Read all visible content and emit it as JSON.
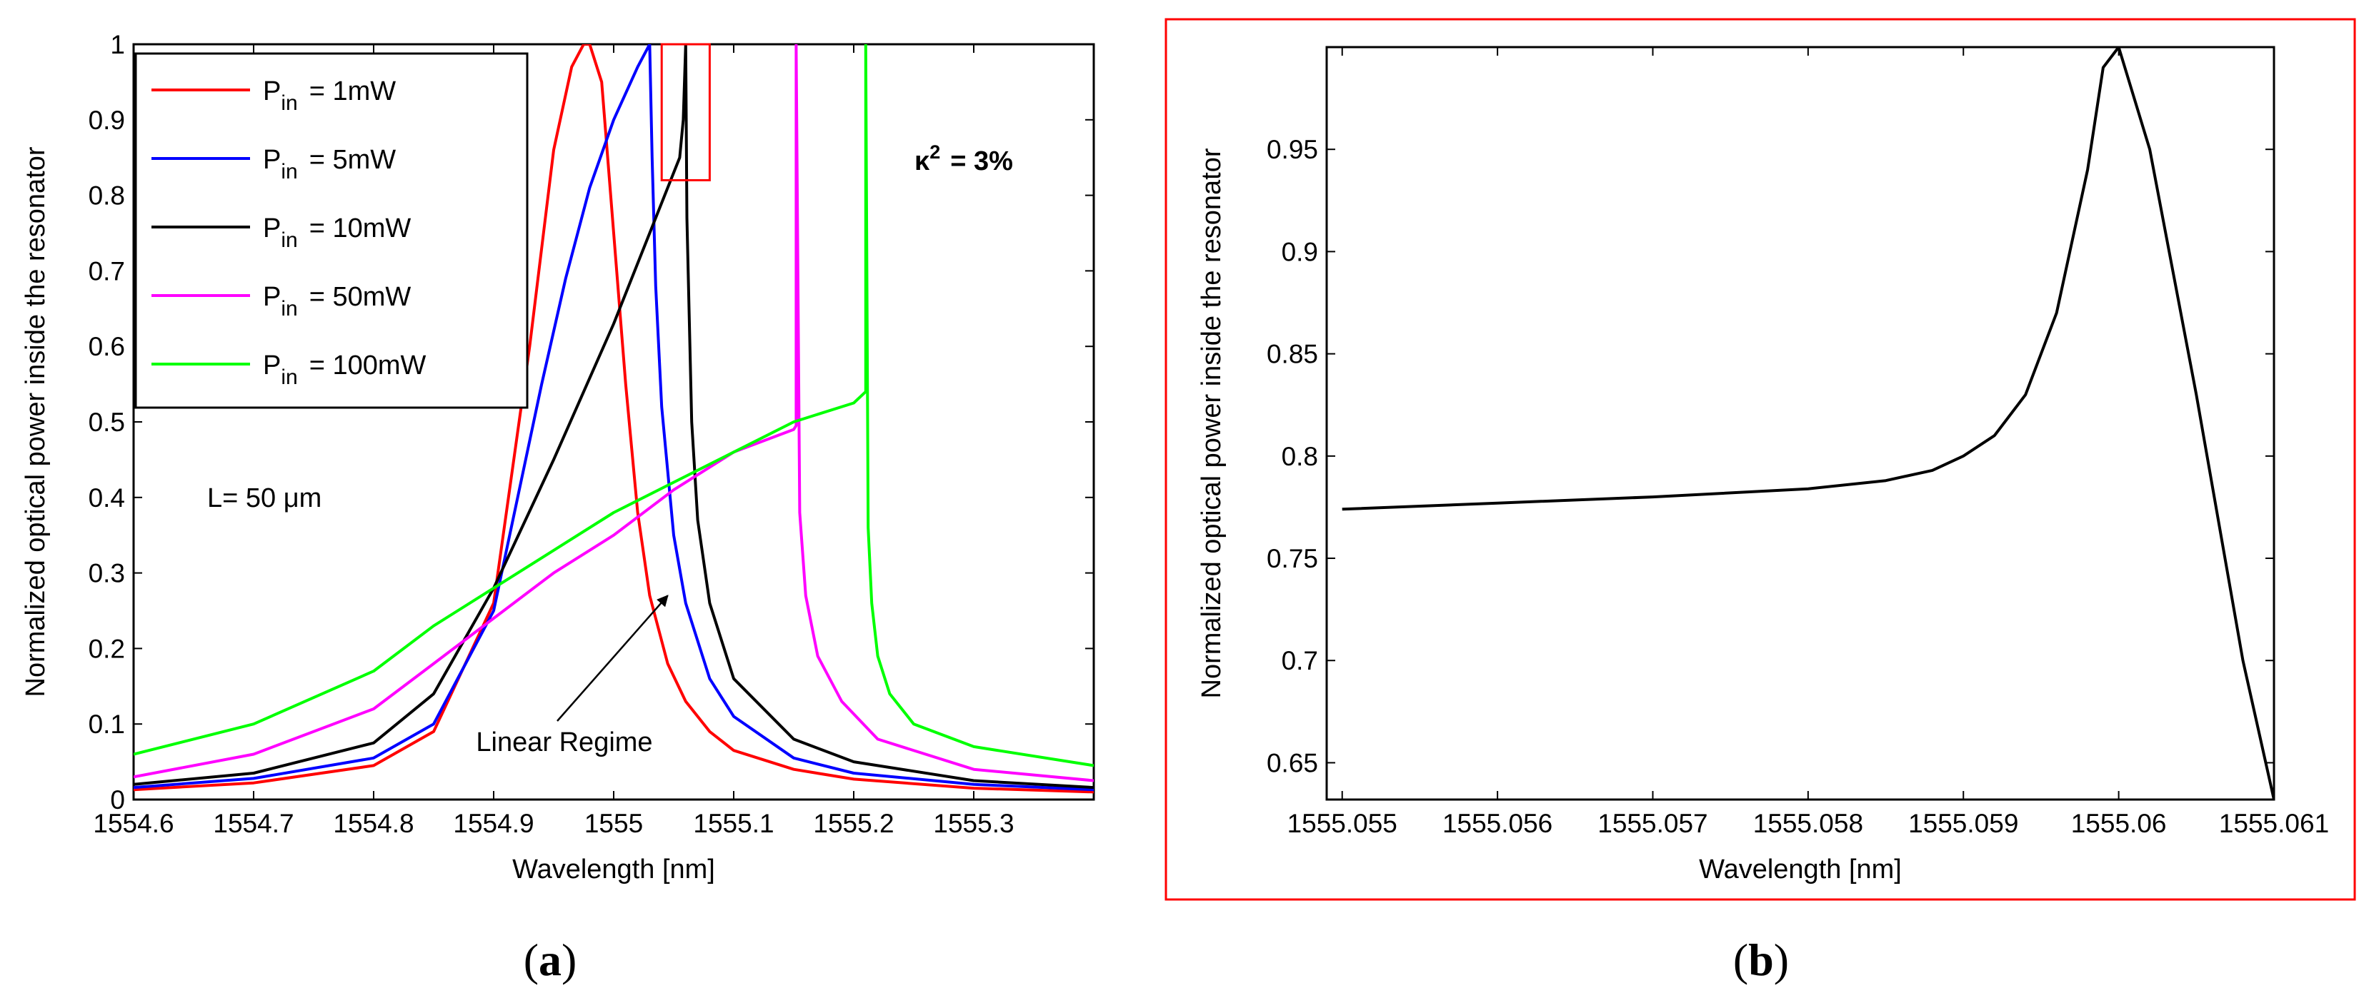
{
  "chart_data": [
    {
      "panel_label": "a",
      "type": "line",
      "xlabel": "Wavelength  [nm]",
      "ylabel": "Normalized optical power inside the resonator",
      "xlim": [
        1554.6,
        1555.4
      ],
      "ylim": [
        0,
        1
      ],
      "xticks": [
        1554.6,
        1554.7,
        1554.8,
        1554.9,
        1555.0,
        1555.1,
        1555.2,
        1555.3
      ],
      "xtick_labels": [
        "1554.6",
        "1554.7",
        "1554.8",
        "1554.9",
        "1555",
        "1555.1",
        "1555.2",
        "1555.3"
      ],
      "yticks": [
        0,
        0.1,
        0.2,
        0.3,
        0.4,
        0.5,
        0.6,
        0.7,
        0.8,
        0.9,
        1
      ],
      "ytick_labels": [
        "0",
        "0.1",
        "0.2",
        "0.3",
        "0.4",
        "0.5",
        "0.6",
        "0.7",
        "0.8",
        "0.9",
        "1"
      ],
      "legend_position": "top-left",
      "series": [
        {
          "name": "1mW",
          "color": "#ff0000",
          "x": [
            1554.6,
            1554.7,
            1554.8,
            1554.85,
            1554.9,
            1554.93,
            1554.95,
            1554.965,
            1554.975,
            1554.98,
            1554.99,
            1555.0,
            1555.01,
            1555.02,
            1555.03,
            1555.045,
            1555.06,
            1555.08,
            1555.1,
            1555.15,
            1555.2,
            1555.3,
            1555.4
          ],
          "y": [
            0.013,
            0.022,
            0.045,
            0.09,
            0.26,
            0.6,
            0.86,
            0.97,
            1.0,
            1.0,
            0.95,
            0.75,
            0.55,
            0.38,
            0.27,
            0.18,
            0.13,
            0.09,
            0.065,
            0.04,
            0.027,
            0.015,
            0.01
          ]
        },
        {
          "name": "5mW",
          "color": "#0000ff",
          "x": [
            1554.6,
            1554.7,
            1554.8,
            1554.85,
            1554.9,
            1554.92,
            1554.94,
            1554.96,
            1554.98,
            1555.0,
            1555.02,
            1555.03,
            1555.032,
            1555.035,
            1555.04,
            1555.05,
            1555.06,
            1555.08,
            1555.1,
            1555.15,
            1555.2,
            1555.3,
            1555.4
          ],
          "y": [
            0.016,
            0.028,
            0.055,
            0.1,
            0.25,
            0.4,
            0.55,
            0.69,
            0.81,
            0.9,
            0.97,
            1.0,
            0.85,
            0.68,
            0.52,
            0.35,
            0.26,
            0.16,
            0.11,
            0.055,
            0.035,
            0.02,
            0.013
          ]
        },
        {
          "name": "10mW",
          "color": "#000000",
          "x": [
            1554.6,
            1554.7,
            1554.8,
            1554.85,
            1554.9,
            1554.95,
            1555.0,
            1555.03,
            1555.055,
            1555.058,
            1555.06,
            1555.061,
            1555.065,
            1555.07,
            1555.08,
            1555.1,
            1555.15,
            1555.2,
            1555.3,
            1555.4
          ],
          "y": [
            0.02,
            0.035,
            0.075,
            0.14,
            0.28,
            0.45,
            0.63,
            0.75,
            0.85,
            0.9,
            1.0,
            0.77,
            0.5,
            0.37,
            0.26,
            0.16,
            0.08,
            0.05,
            0.025,
            0.016
          ]
        },
        {
          "name": "50mW",
          "color": "#ff00ff",
          "x": [
            1554.6,
            1554.7,
            1554.8,
            1554.85,
            1554.9,
            1554.95,
            1555.0,
            1555.05,
            1555.1,
            1555.15,
            1555.152,
            1555.152,
            1555.155,
            1555.16,
            1555.17,
            1555.19,
            1555.22,
            1555.3,
            1555.4
          ],
          "y": [
            0.03,
            0.06,
            0.12,
            0.18,
            0.24,
            0.3,
            0.35,
            0.41,
            0.46,
            0.49,
            0.495,
            1.0,
            0.38,
            0.27,
            0.19,
            0.13,
            0.08,
            0.04,
            0.025
          ]
        },
        {
          "name": "100mW",
          "color": "#00ff00",
          "x": [
            1554.6,
            1554.7,
            1554.8,
            1554.85,
            1554.9,
            1554.95,
            1555.0,
            1555.05,
            1555.1,
            1555.15,
            1555.2,
            1555.21,
            1555.21,
            1555.212,
            1555.215,
            1555.22,
            1555.23,
            1555.25,
            1555.3,
            1555.4
          ],
          "y": [
            0.06,
            0.1,
            0.17,
            0.23,
            0.28,
            0.33,
            0.38,
            0.42,
            0.46,
            0.5,
            0.525,
            0.54,
            1.0,
            0.36,
            0.26,
            0.19,
            0.14,
            0.1,
            0.07,
            0.045
          ]
        }
      ],
      "legend": {
        "prefix_main": "P",
        "prefix_sub": "in",
        "entries": [
          "= 1mW",
          "= 5mW",
          "= 10mW",
          "= 50mW",
          "= 100mW"
        ]
      },
      "annotations": {
        "kappa_symbol": "κ",
        "kappa_exp": "2",
        "kappa_value": "= 3%",
        "length_text": "L= 50 μm",
        "regime_text": "Linear Regime",
        "zoom_box": {
          "x0": 1555.04,
          "x1": 1555.08,
          "y0": 0.82,
          "y1": 1.0
        },
        "arrow_target": {
          "x": 1555.045,
          "y": 0.27
        }
      },
      "caption": "(a)"
    },
    {
      "panel_label": "b",
      "type": "line",
      "xlabel": "Wavelength  [nm]",
      "ylabel": "Normalized optical power inside the resonator",
      "xlim": [
        1555.0549,
        1555.061
      ],
      "ylim": [
        0.632,
        1.0
      ],
      "xticks": [
        1555.055,
        1555.056,
        1555.057,
        1555.058,
        1555.059,
        1555.06,
        1555.061
      ],
      "xtick_labels": [
        "1555.055",
        "1555.056",
        "1555.057",
        "1555.058",
        "1555.059",
        "1555.06",
        "1555.061"
      ],
      "yticks": [
        0.65,
        0.7,
        0.75,
        0.8,
        0.85,
        0.9,
        0.95
      ],
      "ytick_labels": [
        "0.65",
        "0.7",
        "0.75",
        "0.8",
        "0.85",
        "0.9",
        "0.95"
      ],
      "series": [
        {
          "name": "10mW",
          "color": "#000000",
          "x": [
            1555.055,
            1555.056,
            1555.057,
            1555.058,
            1555.0585,
            1555.0588,
            1555.059,
            1555.0592,
            1555.0594,
            1555.0596,
            1555.0598,
            1555.0599,
            1555.06,
            1555.0602,
            1555.0605,
            1555.0608,
            1555.061
          ],
          "y": [
            0.774,
            0.777,
            0.78,
            0.784,
            0.788,
            0.793,
            0.8,
            0.81,
            0.83,
            0.87,
            0.94,
            0.99,
            1.0,
            0.95,
            0.83,
            0.7,
            0.632
          ]
        }
      ],
      "caption": "(b)"
    }
  ]
}
